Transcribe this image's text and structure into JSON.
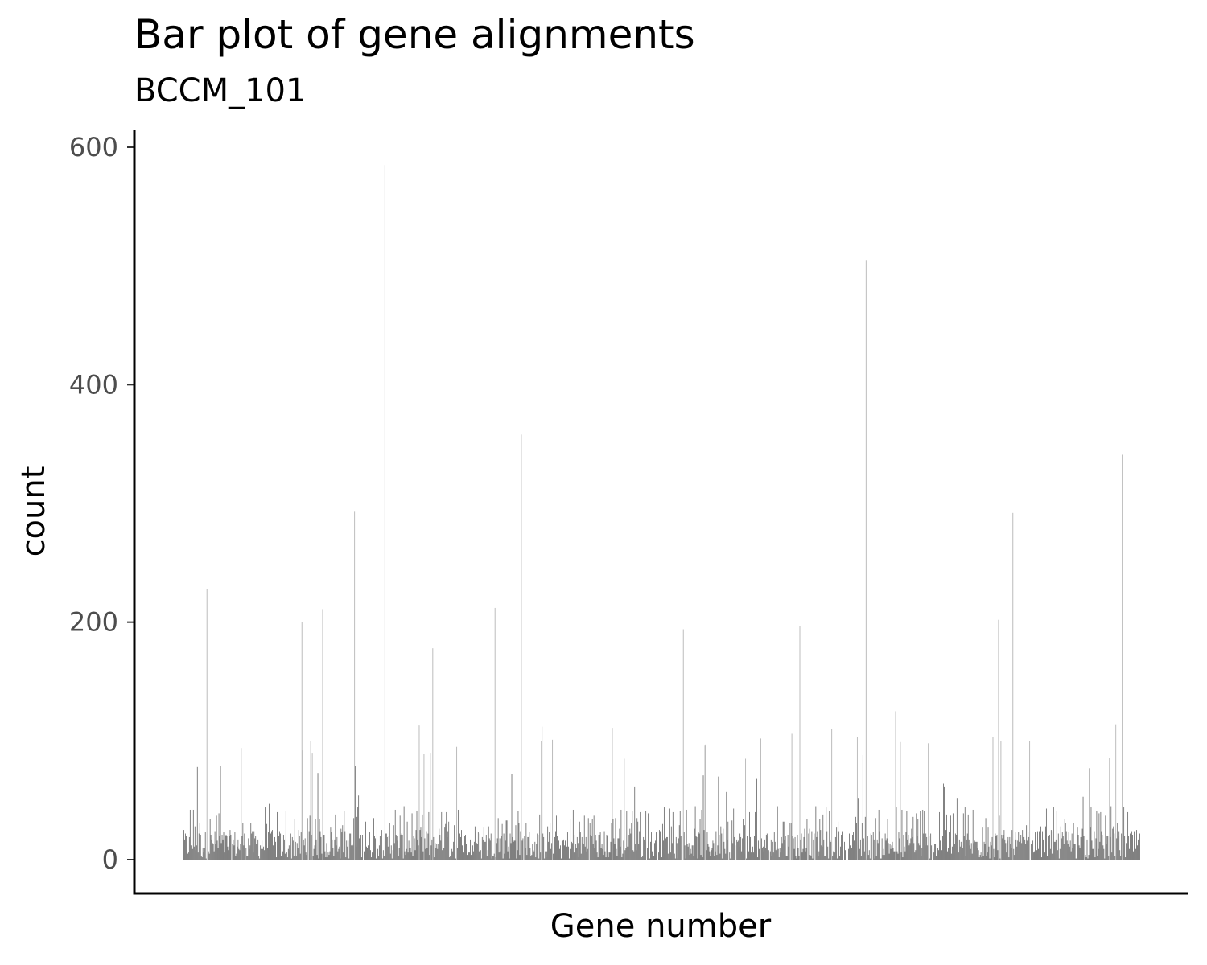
{
  "chart_data": {
    "type": "bar",
    "title": "Bar plot of gene alignments",
    "subtitle": "BCCM_101",
    "xlabel": "Gene number",
    "ylabel": "count",
    "ylim": [
      -28,
      630
    ],
    "yticks": [
      0,
      200,
      400,
      600
    ],
    "x_tick_labels": "none",
    "grid": false,
    "bar_color": "#595959",
    "n_genes": 1200,
    "typical_count_range": [
      0,
      45
    ],
    "peaks": [
      {
        "gene": 30,
        "count": 228
      },
      {
        "gene": 149,
        "count": 200
      },
      {
        "gene": 175,
        "count": 211
      },
      {
        "gene": 215,
        "count": 293
      },
      {
        "gene": 253,
        "count": 585
      },
      {
        "gene": 313,
        "count": 178
      },
      {
        "gene": 391,
        "count": 212
      },
      {
        "gene": 424,
        "count": 358
      },
      {
        "gene": 480,
        "count": 158
      },
      {
        "gene": 627,
        "count": 194
      },
      {
        "gene": 773,
        "count": 197
      },
      {
        "gene": 856,
        "count": 505
      },
      {
        "gene": 893,
        "count": 125
      },
      {
        "gene": 1022,
        "count": 202
      },
      {
        "gene": 1040,
        "count": 292
      },
      {
        "gene": 1177,
        "count": 341
      }
    ]
  },
  "colors": {
    "axis": "#000000",
    "tick_label": "#4d4d4d",
    "bars": "#595959"
  }
}
